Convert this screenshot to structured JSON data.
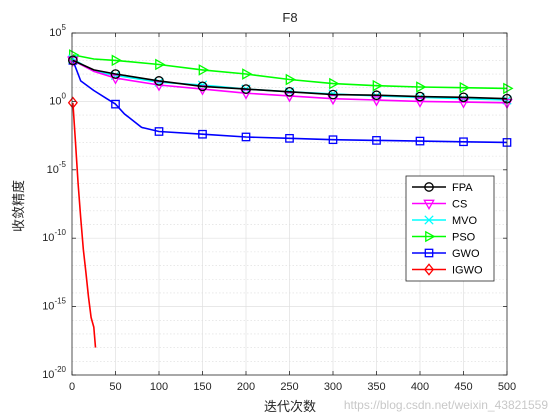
{
  "chart_data": {
    "type": "line",
    "title": "F8",
    "xlabel": "迭代次数",
    "ylabel": "收敛精度",
    "xlim": [
      0,
      500
    ],
    "ylim_log10": [
      -20,
      5
    ],
    "yscale": "log",
    "x_ticks": [
      "0",
      "50",
      "100",
      "150",
      "200",
      "250",
      "300",
      "350",
      "400",
      "450",
      "500"
    ],
    "y_ticks": [
      {
        "base": "10",
        "exp": "-20",
        "value": -20
      },
      {
        "base": "10",
        "exp": "-15",
        "value": -15
      },
      {
        "base": "10",
        "exp": "-10",
        "value": -10
      },
      {
        "base": "10",
        "exp": "-5",
        "value": -5
      },
      {
        "base": "10",
        "exp": "0",
        "value": 0
      },
      {
        "base": "10",
        "exp": "5",
        "value": 5
      }
    ],
    "grid": true,
    "legend_position": "right",
    "watermark": "https://blog.csdn.net/weixin_43821559",
    "series": [
      {
        "name": "FPA",
        "color": "#000000",
        "marker": "circle",
        "x": [
          1,
          25,
          50,
          100,
          150,
          200,
          250,
          300,
          350,
          400,
          450,
          500
        ],
        "log10y": [
          3.0,
          2.3,
          2.0,
          1.5,
          1.1,
          0.9,
          0.7,
          0.5,
          0.45,
          0.35,
          0.3,
          0.2
        ]
      },
      {
        "name": "CS",
        "color": "#ff00ff",
        "marker": "triangle-down",
        "x": [
          1,
          25,
          50,
          100,
          150,
          200,
          250,
          300,
          350,
          400,
          450,
          500
        ],
        "log10y": [
          3.0,
          2.2,
          1.7,
          1.2,
          0.9,
          0.6,
          0.4,
          0.2,
          0.1,
          0.0,
          -0.05,
          -0.1
        ]
      },
      {
        "name": "MVO",
        "color": "#00ffff",
        "marker": "x",
        "x": [
          1,
          25,
          50,
          100,
          150,
          200,
          250,
          300,
          350,
          400,
          450,
          500
        ],
        "log10y": [
          3.1,
          2.2,
          1.9,
          1.4,
          1.2,
          0.9,
          0.7,
          0.55,
          0.4,
          0.3,
          0.2,
          0.1
        ]
      },
      {
        "name": "PSO",
        "color": "#00ff00",
        "marker": "triangle-right",
        "x": [
          1,
          25,
          50,
          100,
          150,
          200,
          250,
          300,
          350,
          400,
          450,
          500
        ],
        "log10y": [
          3.4,
          3.1,
          3.0,
          2.7,
          2.3,
          2.0,
          1.6,
          1.3,
          1.15,
          1.05,
          1.0,
          0.95
        ]
      },
      {
        "name": "GWO",
        "color": "#0000ff",
        "marker": "square",
        "x": [
          1,
          10,
          25,
          40,
          50,
          60,
          80,
          100,
          150,
          200,
          250,
          300,
          350,
          400,
          450,
          500
        ],
        "log10y": [
          3.0,
          1.5,
          0.8,
          0.2,
          -0.2,
          -0.9,
          -1.9,
          -2.2,
          -2.4,
          -2.6,
          -2.7,
          -2.8,
          -2.85,
          -2.9,
          -2.95,
          -3.0
        ]
      },
      {
        "name": "IGWO",
        "color": "#ff0000",
        "marker": "diamond",
        "x": [
          1,
          4,
          7,
          10,
          13,
          16,
          19,
          22,
          25,
          27
        ],
        "log10y": [
          -0.1,
          -3.0,
          -6.0,
          -8.5,
          -10.8,
          -12.5,
          -14.3,
          -15.8,
          -16.5,
          -18.0
        ]
      }
    ]
  }
}
